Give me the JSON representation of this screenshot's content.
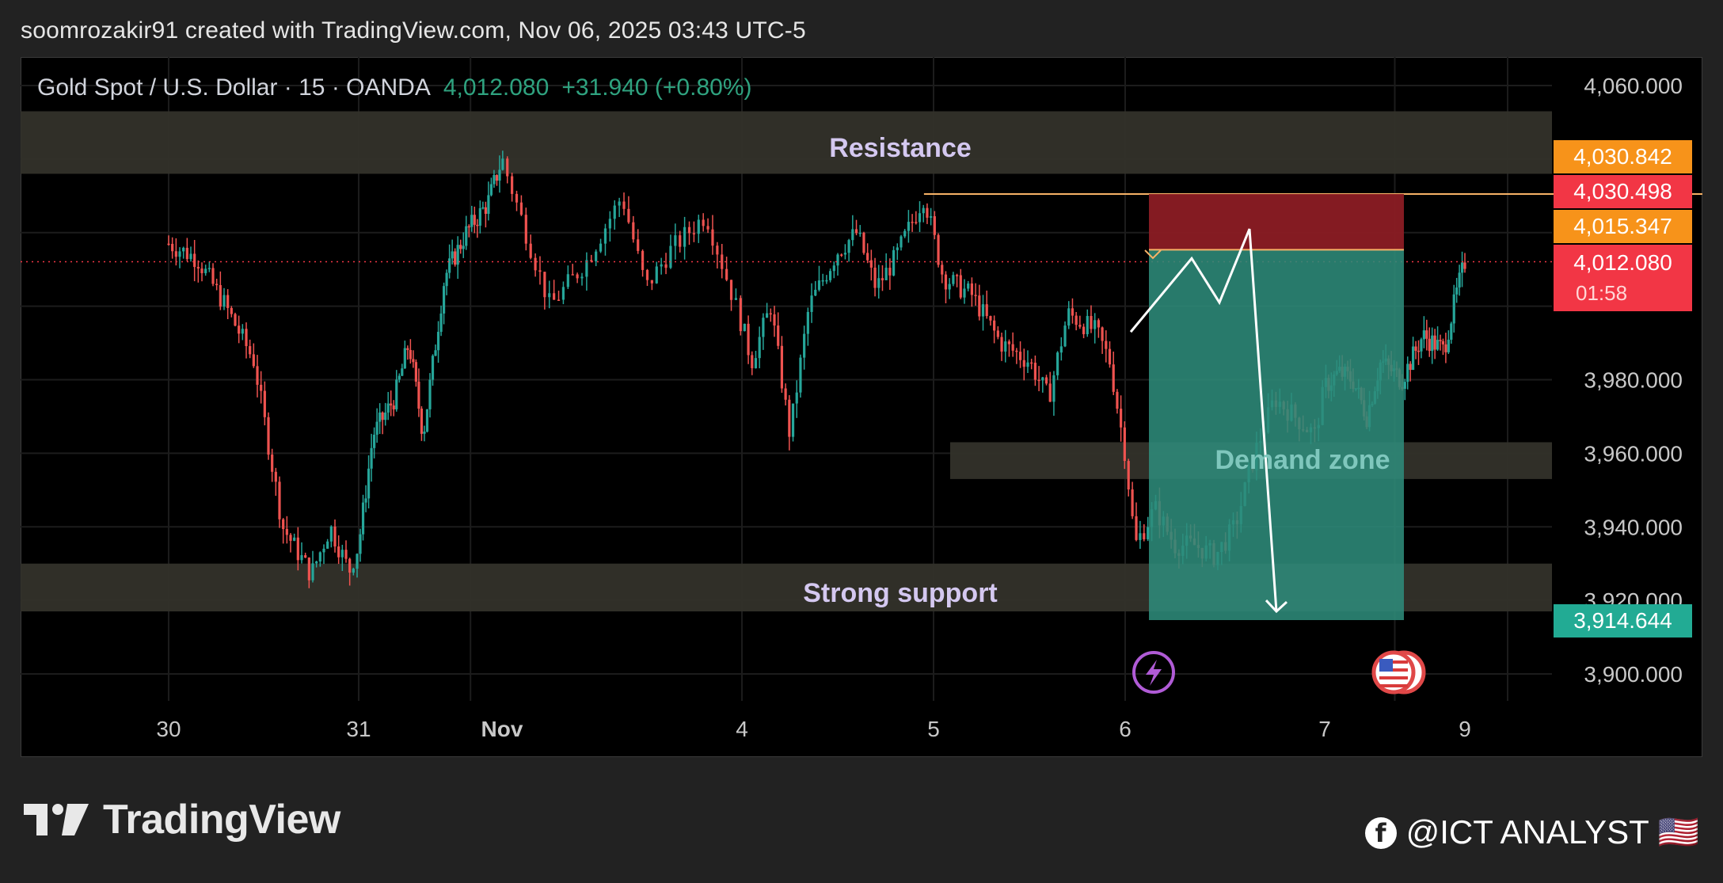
{
  "header": {
    "credit": "soomrozakir91 created with TradingView.com, Nov 06, 2025 03:43 UTC-5"
  },
  "symbol": {
    "name": "Gold Spot / U.S. Dollar · 15 · OANDA",
    "price": "4,012.080",
    "change": "+31.940 (+0.80%)"
  },
  "price_tags": {
    "tag1": "4,030.842",
    "tag2": "4,030.498",
    "tag3": "4,015.347",
    "tag4_price": "4,012.080",
    "tag4_timer": "01:58",
    "tag5": "3,914.644"
  },
  "annotations": {
    "resistance": "Resistance",
    "support": "Strong support",
    "demand": "Demand zone"
  },
  "brand": {
    "name": "TradingView"
  },
  "watermark": {
    "text": "@ICT ANALYST 🇺🇸"
  },
  "colors": {
    "bull": "#26a69a",
    "bear": "#ef5350",
    "stop_zone": "#8b1c24",
    "target_zone": "#2e8b7a",
    "zone_band": "#33322a",
    "orange_tag": "#f7931a",
    "red_tag": "#f23645",
    "teal_tag": "#22ab94"
  },
  "chart_data": {
    "type": "candlestick",
    "title": "Gold Spot / U.S. Dollar · 15 · OANDA",
    "y_ticks": [
      "4,060.000",
      "3,980.000",
      "3,960.000",
      "3,940.000",
      "3,920.000",
      "3,900.000"
    ],
    "y_tick_values": [
      4060,
      3980,
      3960,
      3940,
      3920,
      3900
    ],
    "x_ticks": [
      "30",
      "31",
      "Nov",
      "4",
      "5",
      "6",
      "7",
      "9"
    ],
    "ylim": [
      3890,
      4070
    ],
    "zones": {
      "resistance": [
        4036,
        4053
      ],
      "demand_zone": [
        3953,
        3963
      ],
      "strong_support": [
        3917,
        3930
      ]
    },
    "horizontal_line": 4030.498,
    "current_price_line": 4012.08,
    "trade": {
      "stop": 4030.498,
      "entry": 4015.347,
      "target": 3914.644
    },
    "projection_path": [
      {
        "x": 6.05,
        "y": 3993
      },
      {
        "x": 6.33,
        "y": 4013
      },
      {
        "x": 6.5,
        "y": 4001
      },
      {
        "x": 6.65,
        "y": 4021
      },
      {
        "x": 6.77,
        "y": 3917
      }
    ],
    "price_path": [
      {
        "x": 0.0,
        "y": 4017
      },
      {
        "x": 0.15,
        "y": 4013
      },
      {
        "x": 0.3,
        "y": 4000
      },
      {
        "x": 0.45,
        "y": 3985
      },
      {
        "x": 0.6,
        "y": 3940
      },
      {
        "x": 0.75,
        "y": 3927
      },
      {
        "x": 0.85,
        "y": 3940
      },
      {
        "x": 0.95,
        "y": 3928
      },
      {
        "x": 1.0,
        "y": 3935
      },
      {
        "x": 1.1,
        "y": 3965
      },
      {
        "x": 1.25,
        "y": 3975
      },
      {
        "x": 1.35,
        "y": 3990
      },
      {
        "x": 1.45,
        "y": 3965
      },
      {
        "x": 1.6,
        "y": 4008
      },
      {
        "x": 1.75,
        "y": 4020
      },
      {
        "x": 1.9,
        "y": 4028
      },
      {
        "x": 2.0,
        "y": 4040
      },
      {
        "x": 2.1,
        "y": 4020
      },
      {
        "x": 2.2,
        "y": 4000
      },
      {
        "x": 2.35,
        "y": 4012
      },
      {
        "x": 2.5,
        "y": 4030
      },
      {
        "x": 2.6,
        "y": 4005
      },
      {
        "x": 2.7,
        "y": 4015
      },
      {
        "x": 2.85,
        "y": 4025
      },
      {
        "x": 2.95,
        "y": 4005
      },
      {
        "x": 3.05,
        "y": 3985
      },
      {
        "x": 3.15,
        "y": 4000
      },
      {
        "x": 3.25,
        "y": 3965
      },
      {
        "x": 3.35,
        "y": 4000
      },
      {
        "x": 3.5,
        "y": 4015
      },
      {
        "x": 3.6,
        "y": 4020
      },
      {
        "x": 3.7,
        "y": 4005
      },
      {
        "x": 3.8,
        "y": 4013
      },
      {
        "x": 3.95,
        "y": 4030
      },
      {
        "x": 4.05,
        "y": 4008
      },
      {
        "x": 4.2,
        "y": 4003
      },
      {
        "x": 4.35,
        "y": 3990
      },
      {
        "x": 4.5,
        "y": 3985
      },
      {
        "x": 4.6,
        "y": 3975
      },
      {
        "x": 4.7,
        "y": 3998
      },
      {
        "x": 4.85,
        "y": 3993
      },
      {
        "x": 4.92,
        "y": 3985
      },
      {
        "x": 5.0,
        "y": 3960
      },
      {
        "x": 5.05,
        "y": 3935
      },
      {
        "x": 5.15,
        "y": 3945
      },
      {
        "x": 5.25,
        "y": 3935
      },
      {
        "x": 5.35,
        "y": 3935
      },
      {
        "x": 5.45,
        "y": 3932
      },
      {
        "x": 5.55,
        "y": 3940
      },
      {
        "x": 5.65,
        "y": 3960
      },
      {
        "x": 5.75,
        "y": 3975
      },
      {
        "x": 5.85,
        "y": 3970
      },
      {
        "x": 5.95,
        "y": 3965
      },
      {
        "x": 6.0,
        "y": 3978
      },
      {
        "x": 6.1,
        "y": 3982
      },
      {
        "x": 6.2,
        "y": 3980
      },
      {
        "x": 6.3,
        "y": 3970
      },
      {
        "x": 6.4,
        "y": 3985
      },
      {
        "x": 6.55,
        "y": 3980
      },
      {
        "x": 6.7,
        "y": 3992
      },
      {
        "x": 6.85,
        "y": 3988
      },
      {
        "x": 6.95,
        "y": 4005
      },
      {
        "x": 7.0,
        "y": 4012
      }
    ]
  }
}
